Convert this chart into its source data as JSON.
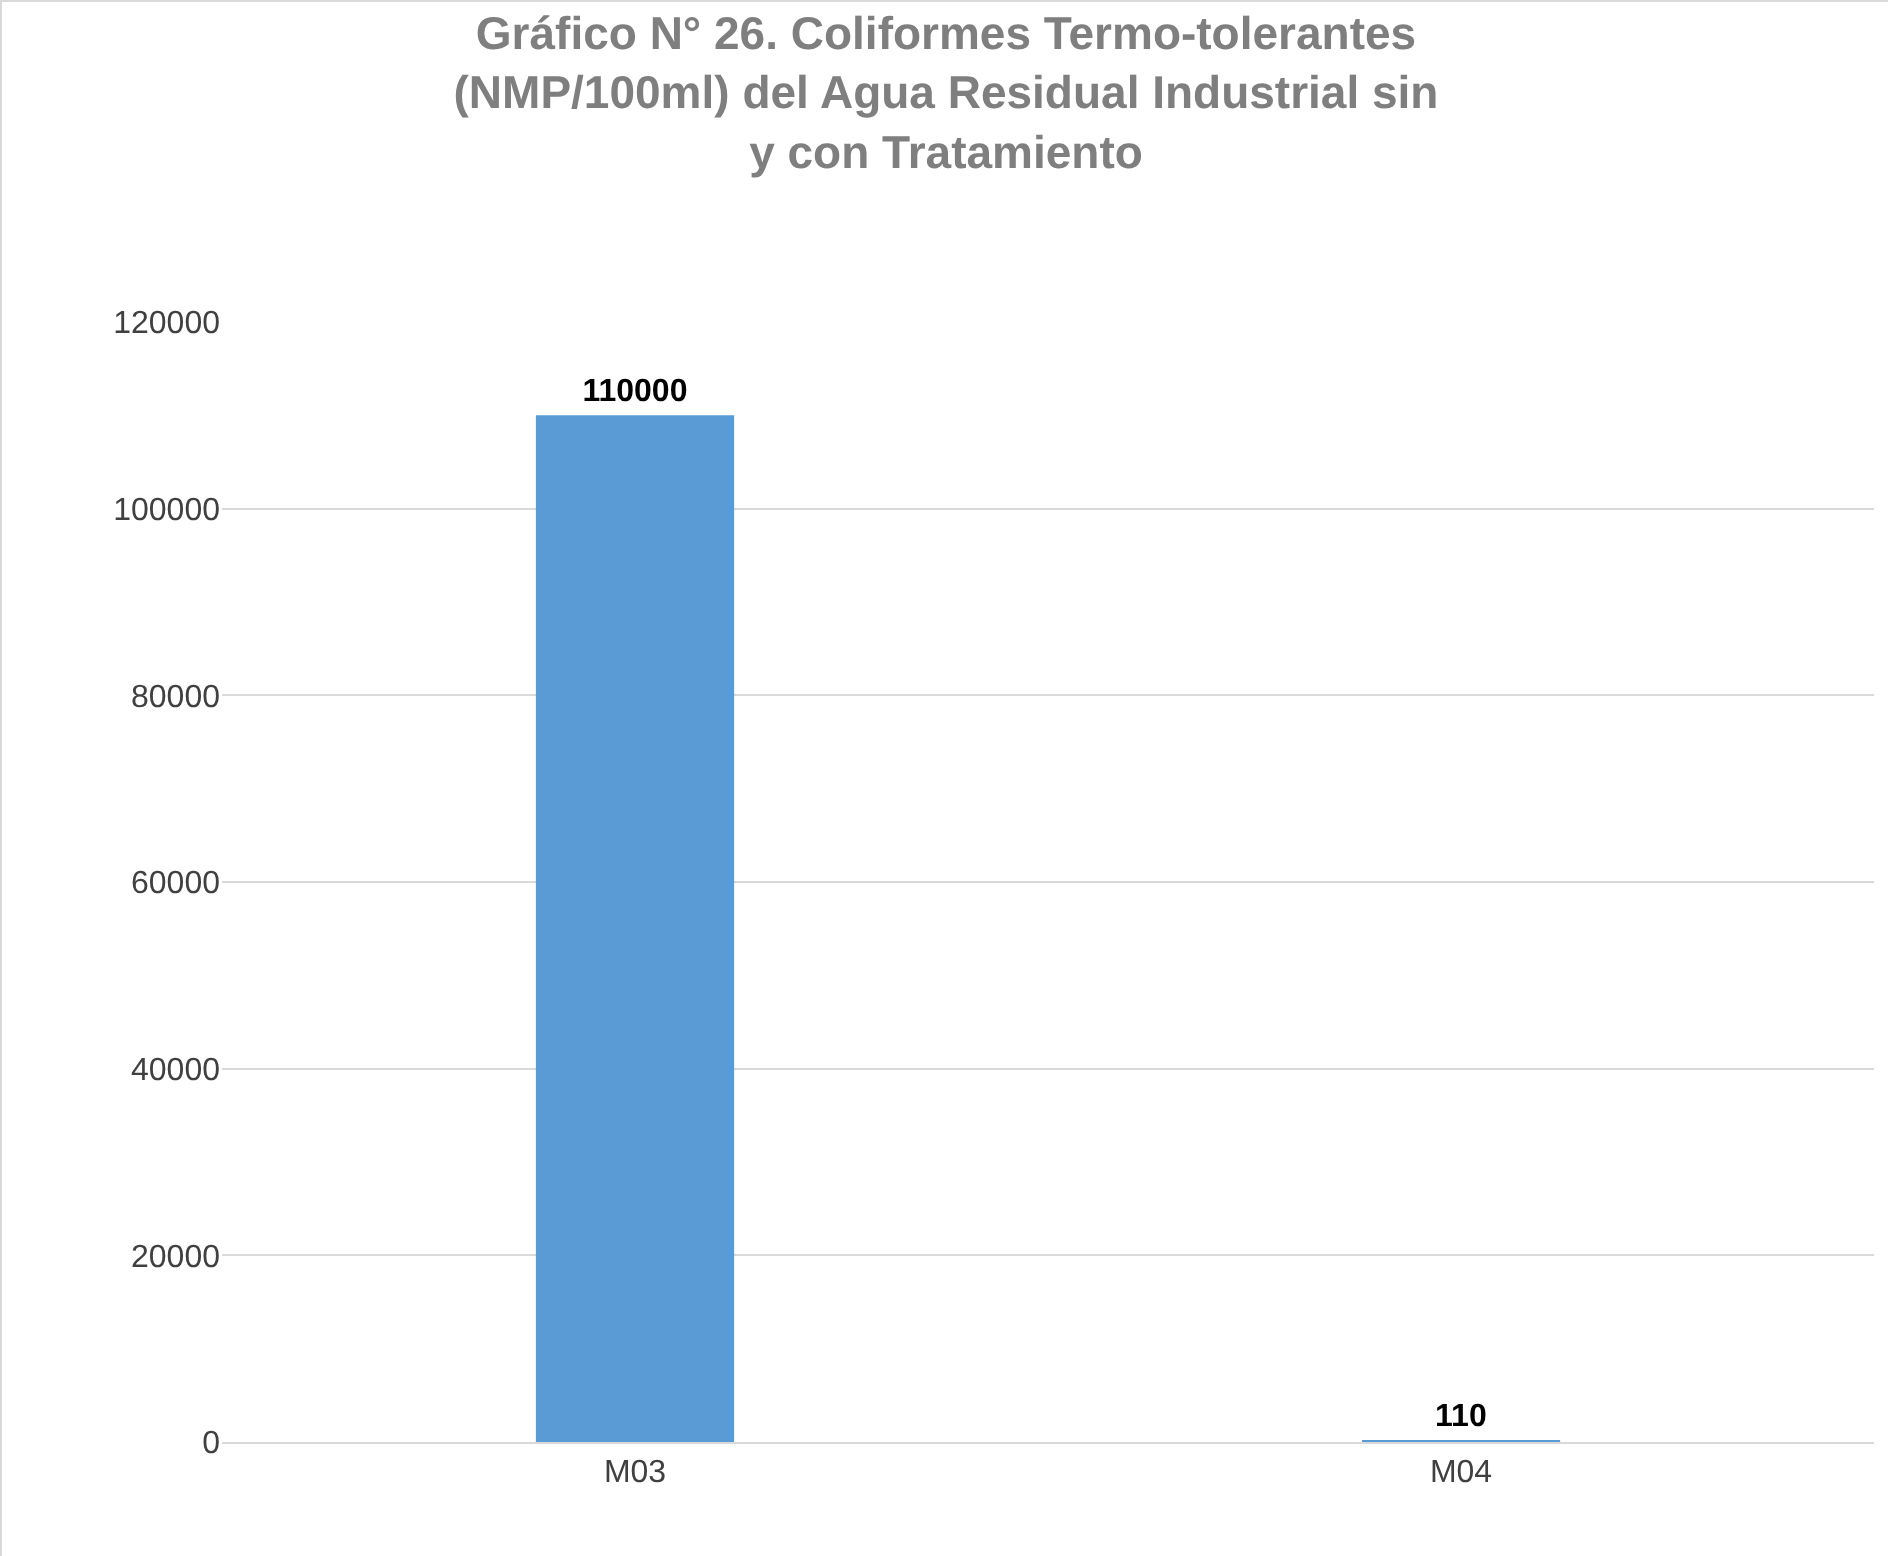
{
  "chart_data": {
    "type": "bar",
    "title": "Gráfico N° 26. Coliformes Termo-tolerantes (NMP/100ml) del Agua Residual Industrial sin y con Tratamiento",
    "categories": [
      "M03",
      "M04"
    ],
    "values": [
      110000,
      110
    ],
    "color": "#5b9bd5",
    "ylim": [
      0,
      120000
    ],
    "yticks": [
      0,
      20000,
      40000,
      60000,
      80000,
      100000,
      120000
    ],
    "grid": "y",
    "data_labels": true,
    "legend": false
  }
}
